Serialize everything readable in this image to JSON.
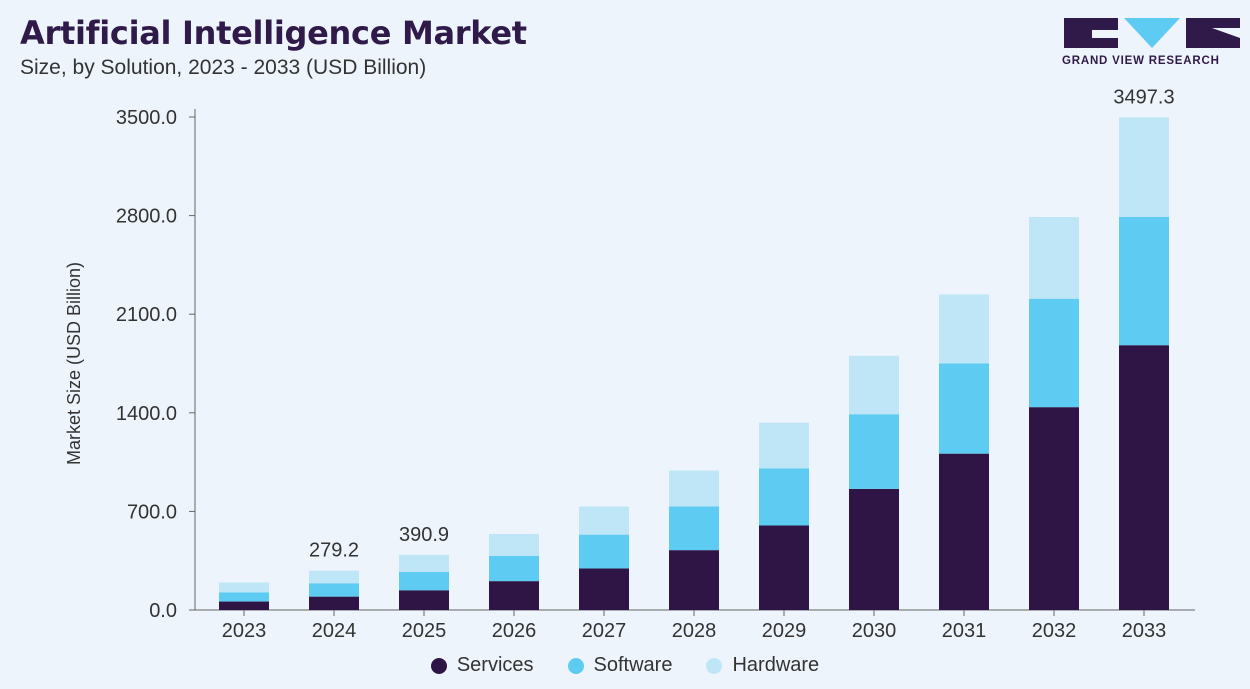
{
  "header": {
    "title": "Artificial Intelligence Market",
    "subtitle": "Size, by Solution, 2023 - 2033 (USD Billion)"
  },
  "brand": {
    "logo_text": "GRAND VIEW RESEARCH",
    "logo_icon": "gvr-logo-icon"
  },
  "colors": {
    "Services": "#2e1546",
    "Software": "#5ecbf2",
    "Hardware": "#bfe6f7",
    "axis": "#666666",
    "text": "#333333"
  },
  "chart_data": {
    "type": "bar",
    "stacked": true,
    "title": "Artificial Intelligence Market",
    "subtitle": "Size, by Solution, 2023 - 2033 (USD Billion)",
    "xlabel": "",
    "ylabel": "Market Size (USD Billion)",
    "ylim": [
      0,
      3500
    ],
    "yticks": [
      "0.0",
      "700.0",
      "1400.0",
      "2100.0",
      "2800.0",
      "3500.0"
    ],
    "categories": [
      "2023",
      "2024",
      "2025",
      "2026",
      "2027",
      "2028",
      "2029",
      "2030",
      "2031",
      "2032",
      "2033"
    ],
    "series": [
      {
        "name": "Services",
        "values": [
          60,
          95,
          140,
          205,
          295,
          425,
          600,
          860,
          1110,
          1440,
          1880
        ]
      },
      {
        "name": "Software",
        "values": [
          65,
          95,
          130,
          180,
          240,
          310,
          405,
          530,
          640,
          770,
          910
        ]
      },
      {
        "name": "Hardware",
        "values": [
          70,
          89.2,
          120.9,
          155,
          200,
          255,
          325,
          415,
          490,
          580,
          707.3
        ]
      }
    ],
    "data_labels": [
      {
        "category": "2024",
        "text": "279.2"
      },
      {
        "category": "2025",
        "text": "390.9"
      },
      {
        "category": "2033",
        "text": "3497.3"
      }
    ],
    "legend_position": "bottom",
    "grid": false
  }
}
